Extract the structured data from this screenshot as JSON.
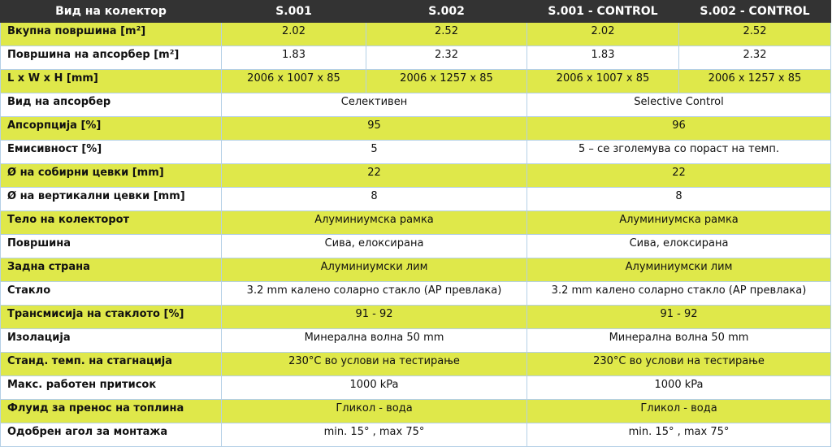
{
  "header": [
    "Вид на колектор",
    "S.001",
    "S.002",
    "S.001 - CONTROL",
    "S.002 - CONTROL"
  ],
  "colors": {
    "header_bg": "#333333",
    "highlight_row": "#dfe84a",
    "border": "#b4d0e6"
  },
  "rows_split": [
    {
      "label": "Вкупна површина [m²]",
      "values": [
        "2.02",
        "2.52",
        "2.02",
        "2.52"
      ]
    },
    {
      "label": "Површина на апсорбер [m²]",
      "values": [
        "1.83",
        "2.32",
        "1.83",
        "2.32"
      ]
    },
    {
      "label": "L x W x H [mm]",
      "values": [
        "2006 x 1007 x 85",
        "2006 x 1257 x 85",
        "2006 x 1007 x 85",
        "2006 x 1257 x 85"
      ]
    }
  ],
  "rows_merged": [
    {
      "label": "Вид на апсорбер",
      "values": [
        "Селективен",
        "Selective Control"
      ]
    },
    {
      "label": "Апсорпција [%]",
      "values": [
        "95",
        "96"
      ]
    },
    {
      "label": "Емисивност [%]",
      "values": [
        "5",
        "5 – се зголемува со пораст на темп."
      ]
    },
    {
      "label": "Ø на собирни цевки [mm]",
      "values": [
        "22",
        "22"
      ]
    },
    {
      "label": "Ø на вертикални цевки [mm]",
      "values": [
        "8",
        "8"
      ]
    },
    {
      "label": "Тело на колекторот",
      "values": [
        "Алуминиумска рамка",
        "Алуминиумска рамка"
      ]
    },
    {
      "label": "Површина",
      "values": [
        "Сива, елоксирана",
        "Сива, елоксирана"
      ]
    },
    {
      "label": "Задна страна",
      "values": [
        "Алуминиумски лим",
        "Алуминиумски лим"
      ]
    },
    {
      "label": "Стакло",
      "values": [
        "3.2 mm калено соларно стакло (АР превлака)",
        "3.2 mm калено соларно стакло (АР превлака)"
      ]
    },
    {
      "label": "Трансмисија на стаклото [%]",
      "values": [
        "91 - 92",
        "91 - 92"
      ]
    },
    {
      "label": "Изолација",
      "values": [
        "Минерална волна 50 mm",
        "Минерална волна 50 mm"
      ]
    },
    {
      "label": "Станд. темп. на стагнација",
      "values": [
        "230°C во услови на тестирање",
        "230°C во услови на тестирање"
      ]
    },
    {
      "label": "Макс. работен притисок",
      "values": [
        "1000 kPa",
        "1000 kPa"
      ]
    },
    {
      "label": "Флуид за пренос на топлина",
      "values": [
        "Гликол - вода",
        "Гликол - вода"
      ]
    },
    {
      "label": "Одобрен агол за монтажа",
      "values": [
        "min. 15° , max 75°",
        "min. 15° , max 75°"
      ]
    }
  ]
}
